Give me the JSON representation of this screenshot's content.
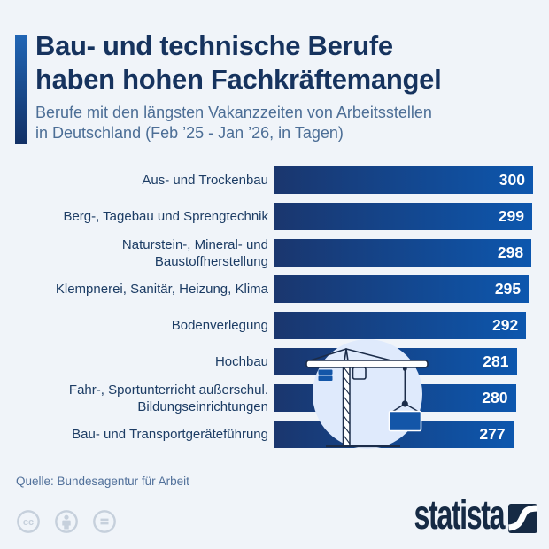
{
  "header": {
    "title_lines": [
      "Bau- und technische Berufe",
      "haben hohen Fachkräftemangel"
    ],
    "subtitle_lines": [
      "Berufe mit den längsten Vakanzzeiten von Arbeitsstellen",
      "in Deutschland (Feb ’25 - Jan ’26, in Tagen)"
    ]
  },
  "chart_data": {
    "type": "bar",
    "orientation": "horizontal",
    "title": "Bau- und technische Berufe haben hohen Fachkräftemangel",
    "subtitle": "Berufe mit den längsten Vakanzzeiten von Arbeitsstellen in Deutschland (Feb ’25 - Jan ’26, in Tagen)",
    "categories": [
      "Aus- und Trockenbau",
      "Berg-, Tagebau und Sprengtechnik",
      "Naturstein-, Mineral- und\nBaustoffherstellung",
      "Klempnerei, Sanitär, Heizung, Klima",
      "Bodenverlegung",
      "Hochbau",
      "Fahr-, Sportunterricht außerschul.\nBildungseinrichtungen",
      "Bau- und Transportgeräteführung"
    ],
    "values": [
      300,
      299,
      298,
      295,
      292,
      281,
      280,
      277
    ],
    "unit": "Tage",
    "xlim": [
      0,
      300
    ],
    "value_labels": true,
    "grid": false,
    "legend": false
  },
  "illustration": {
    "name": "construction-crane"
  },
  "footer": {
    "source": "Quelle: Bundesagentur für Arbeit",
    "license_icons": [
      "cc",
      "by",
      "nd"
    ],
    "brand": "statista"
  },
  "colors": {
    "background": "#f0f4f9",
    "title": "#16335e",
    "subtitle": "#4c6e96",
    "label": "#1c3c64",
    "bar_gradient_left": "#1a366e",
    "bar_gradient_right": "#0d57ae",
    "value_text": "#ffffff",
    "accent_gradient_top": "#2166b5",
    "accent_gradient_bottom": "#123065",
    "source_text": "#51709a",
    "license_icon": "#c6d0dc",
    "brand": "#162a44",
    "illustration_circle": "#dfeafc",
    "illustration_outline": "#1b2c49",
    "illustration_accent": "#1356a8"
  }
}
